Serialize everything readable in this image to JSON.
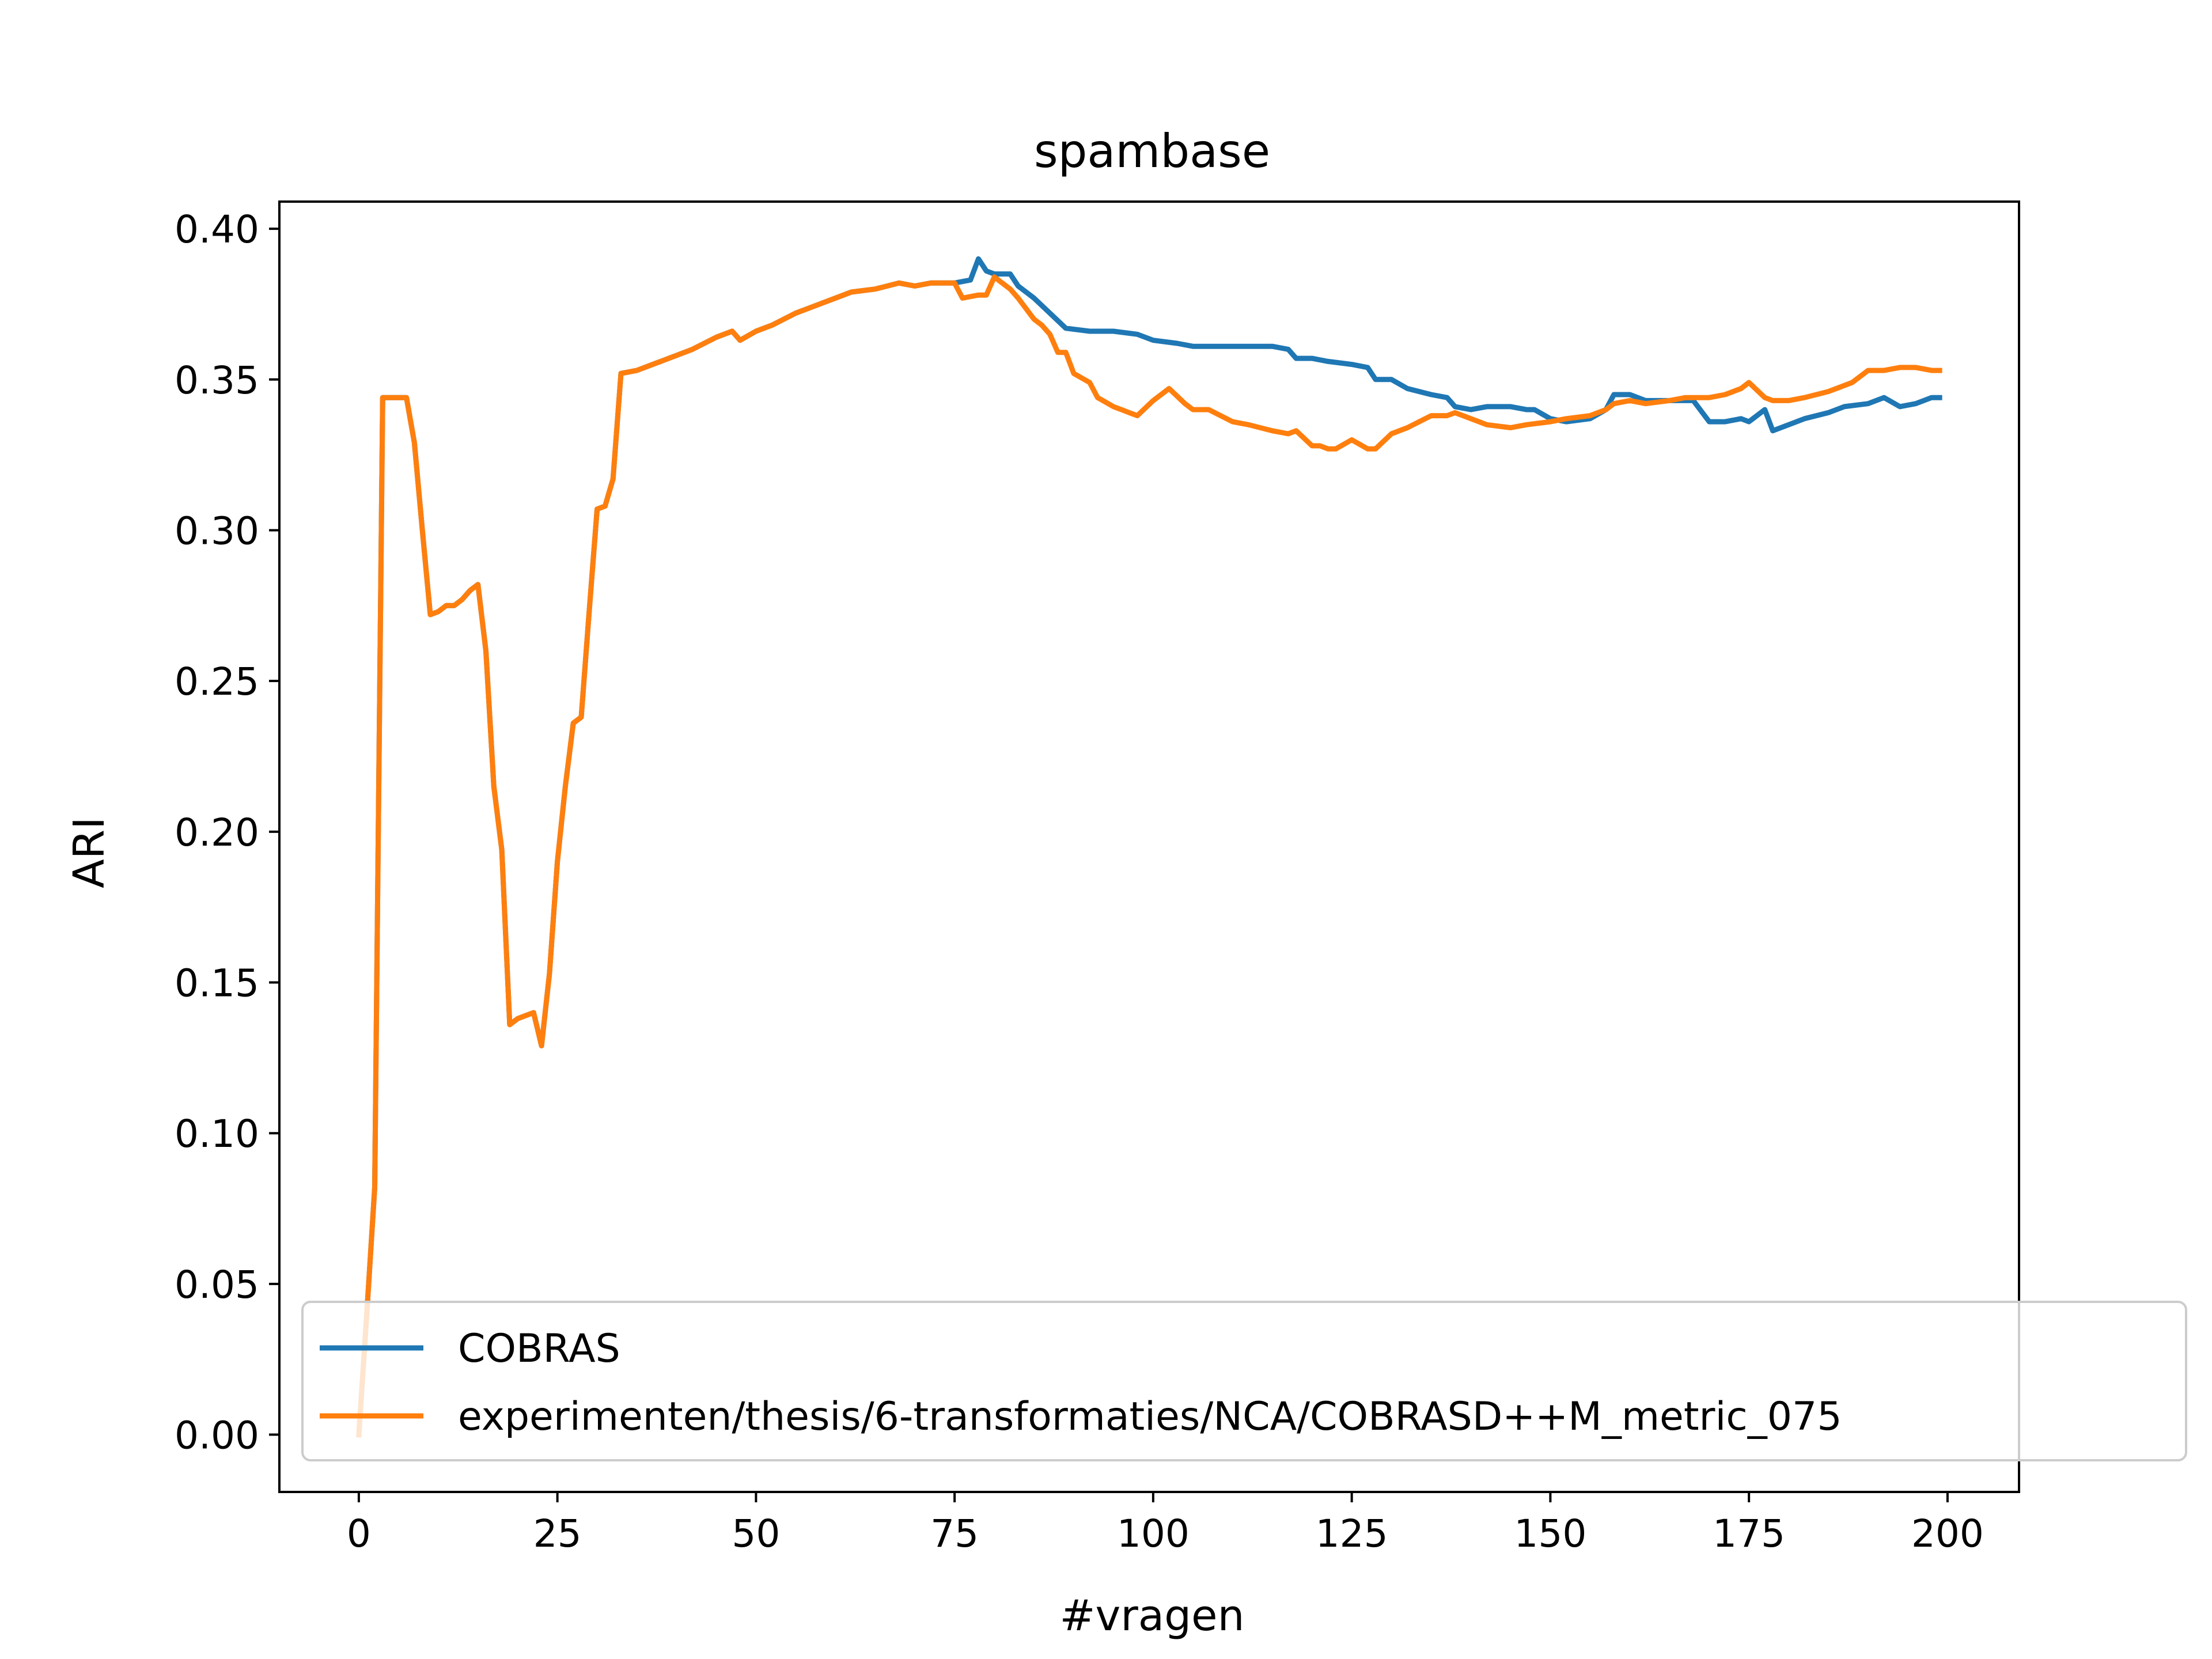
{
  "chart_data": {
    "type": "line",
    "title": "spambase",
    "xlabel": "#vragen",
    "ylabel": "ARI",
    "xlim": [
      -10,
      209
    ],
    "ylim": [
      -0.019,
      0.409
    ],
    "xticks": [
      0,
      25,
      50,
      75,
      100,
      125,
      150,
      175,
      200
    ],
    "xtick_labels": [
      "0",
      "25",
      "50",
      "75",
      "100",
      "125",
      "150",
      "175",
      "200"
    ],
    "yticks": [
      0.0,
      0.05,
      0.1,
      0.15,
      0.2,
      0.25,
      0.3,
      0.35,
      0.4
    ],
    "ytick_labels": [
      "0.00",
      "0.05",
      "0.10",
      "0.15",
      "0.20",
      "0.25",
      "0.30",
      "0.35",
      "0.40"
    ],
    "grid": false,
    "legend_position": "lower right",
    "series": [
      {
        "name": "COBRAS",
        "color": "#1f77b4",
        "x": [
          0,
          1,
          2,
          3,
          4,
          5,
          6,
          7,
          8,
          9,
          10,
          11,
          12,
          13,
          14,
          15,
          16,
          17,
          18,
          19,
          20,
          21,
          22,
          23,
          24,
          25,
          26,
          27,
          28,
          29,
          30,
          31,
          32,
          33,
          35,
          38,
          40,
          42,
          45,
          47,
          48,
          50,
          52,
          55,
          58,
          60,
          62,
          65,
          68,
          70,
          72,
          75,
          77,
          78,
          79,
          80,
          82,
          83,
          85,
          87,
          89,
          92,
          95,
          98,
          100,
          103,
          105,
          108,
          110,
          113,
          115,
          117,
          118,
          120,
          122,
          125,
          127,
          128,
          130,
          132,
          135,
          137,
          138,
          140,
          142,
          145,
          147,
          148,
          150,
          152,
          155,
          157,
          158,
          160,
          162,
          165,
          168,
          170,
          172,
          174,
          175,
          177,
          178,
          180,
          182,
          185,
          187,
          190,
          192,
          194,
          196,
          198,
          199
        ],
        "y": [
          0.0,
          0.04,
          0.082,
          0.344,
          0.344,
          0.344,
          0.344,
          0.329,
          0.3,
          0.272,
          0.273,
          0.275,
          0.275,
          0.277,
          0.28,
          0.282,
          0.26,
          0.215,
          0.194,
          0.136,
          0.138,
          0.139,
          0.14,
          0.129,
          0.153,
          0.19,
          0.215,
          0.236,
          0.238,
          0.273,
          0.307,
          0.308,
          0.317,
          0.352,
          0.353,
          0.356,
          0.358,
          0.36,
          0.364,
          0.366,
          0.363,
          0.366,
          0.368,
          0.372,
          0.375,
          0.377,
          0.379,
          0.38,
          0.382,
          0.381,
          0.382,
          0.382,
          0.383,
          0.39,
          0.386,
          0.385,
          0.385,
          0.381,
          0.377,
          0.372,
          0.367,
          0.366,
          0.366,
          0.365,
          0.363,
          0.362,
          0.361,
          0.361,
          0.361,
          0.361,
          0.361,
          0.36,
          0.357,
          0.357,
          0.356,
          0.355,
          0.354,
          0.35,
          0.35,
          0.347,
          0.345,
          0.344,
          0.341,
          0.34,
          0.341,
          0.341,
          0.34,
          0.34,
          0.337,
          0.336,
          0.337,
          0.34,
          0.345,
          0.345,
          0.343,
          0.343,
          0.343,
          0.336,
          0.336,
          0.337,
          0.336,
          0.34,
          0.333,
          0.335,
          0.337,
          0.339,
          0.341,
          0.342,
          0.344,
          0.341,
          0.342,
          0.344,
          0.344
        ]
      },
      {
        "name": "experimenten/thesis/6-transformaties/NCA/COBRASD++M_metric_075",
        "color": "#ff7f0e",
        "x": [
          0,
          1,
          2,
          3,
          4,
          5,
          6,
          7,
          8,
          9,
          10,
          11,
          12,
          13,
          14,
          15,
          16,
          17,
          18,
          19,
          20,
          21,
          22,
          23,
          24,
          25,
          26,
          27,
          28,
          29,
          30,
          31,
          32,
          33,
          35,
          38,
          40,
          42,
          45,
          47,
          48,
          50,
          52,
          55,
          58,
          60,
          62,
          65,
          68,
          70,
          72,
          75,
          76,
          78,
          79,
          80,
          82,
          83,
          85,
          86,
          87,
          88,
          89,
          90,
          92,
          93,
          95,
          96,
          97,
          98,
          100,
          102,
          104,
          105,
          107,
          110,
          112,
          115,
          117,
          118,
          120,
          121,
          122,
          123,
          125,
          127,
          128,
          130,
          132,
          135,
          137,
          138,
          140,
          142,
          145,
          147,
          150,
          152,
          155,
          157,
          158,
          160,
          162,
          165,
          167,
          170,
          172,
          174,
          175,
          177,
          178,
          180,
          182,
          185,
          186,
          188,
          190,
          192,
          194,
          196,
          198,
          199
        ],
        "y": [
          0.0,
          0.04,
          0.082,
          0.344,
          0.344,
          0.344,
          0.344,
          0.329,
          0.3,
          0.272,
          0.273,
          0.275,
          0.275,
          0.277,
          0.28,
          0.282,
          0.26,
          0.215,
          0.194,
          0.136,
          0.138,
          0.139,
          0.14,
          0.129,
          0.153,
          0.19,
          0.215,
          0.236,
          0.238,
          0.273,
          0.307,
          0.308,
          0.317,
          0.352,
          0.353,
          0.356,
          0.358,
          0.36,
          0.364,
          0.366,
          0.363,
          0.366,
          0.368,
          0.372,
          0.375,
          0.377,
          0.379,
          0.38,
          0.382,
          0.381,
          0.382,
          0.382,
          0.377,
          0.378,
          0.378,
          0.384,
          0.38,
          0.377,
          0.37,
          0.368,
          0.365,
          0.359,
          0.359,
          0.352,
          0.349,
          0.344,
          0.341,
          0.34,
          0.339,
          0.338,
          0.343,
          0.347,
          0.342,
          0.34,
          0.34,
          0.336,
          0.335,
          0.333,
          0.332,
          0.333,
          0.328,
          0.328,
          0.327,
          0.327,
          0.33,
          0.327,
          0.327,
          0.332,
          0.334,
          0.338,
          0.338,
          0.339,
          0.337,
          0.335,
          0.334,
          0.335,
          0.336,
          0.337,
          0.338,
          0.34,
          0.342,
          0.343,
          0.342,
          0.343,
          0.344,
          0.344,
          0.345,
          0.347,
          0.349,
          0.344,
          0.343,
          0.343,
          0.344,
          0.346,
          0.347,
          0.349,
          0.353,
          0.353,
          0.354,
          0.354,
          0.353,
          0.353
        ]
      }
    ]
  }
}
